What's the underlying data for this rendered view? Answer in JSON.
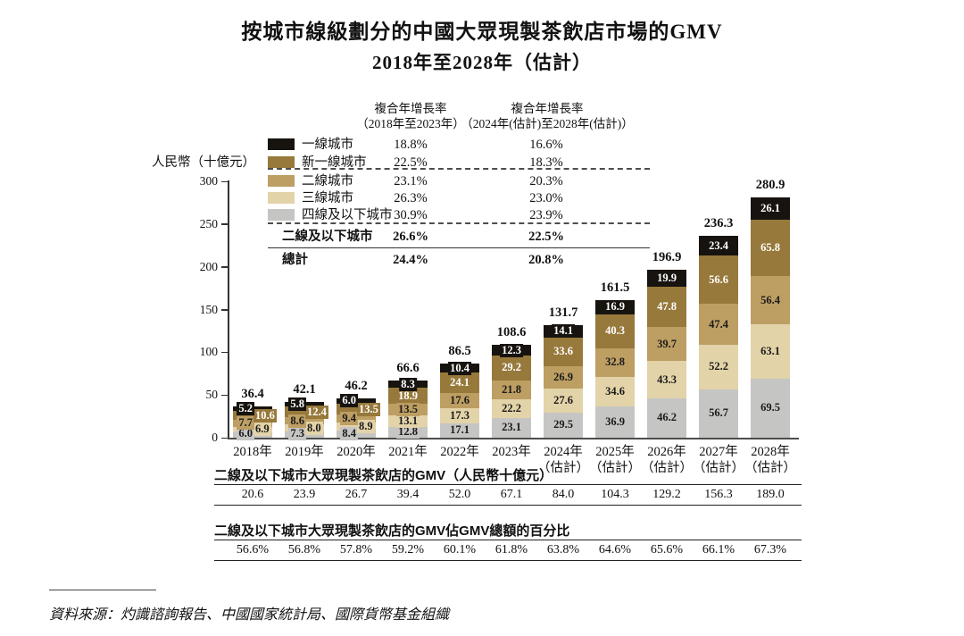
{
  "title": "按城市線級劃分的中國大眾現製茶飲店市場的GMV",
  "subtitle": "2018年至2028年（估計）",
  "y_axis": {
    "unit_label": "人民幣（十億元）",
    "ticks": [
      300,
      250,
      200,
      150,
      100,
      50,
      0
    ]
  },
  "cagr_table": {
    "col1_header_line1": "複合年增長率",
    "col1_header_line2": "（2018年至2023年）",
    "col2_header_line1": "複合年增長率",
    "col2_header_line2": "（2024年(估計)至2028年(估計)）",
    "rows": [
      {
        "label": "一線城市",
        "swatch": "#17130F",
        "cagr1": "18.8%",
        "cagr2": "16.6%",
        "bold": false
      },
      {
        "label": "新一線城市",
        "swatch": "#97793B",
        "cagr1": "22.5%",
        "cagr2": "18.3%",
        "bold": false
      },
      {
        "label": "二線城市",
        "swatch": "#BD9E63",
        "cagr1": "23.1%",
        "cagr2": "20.3%",
        "bold": false
      },
      {
        "label": "三線城市",
        "swatch": "#E3D3A9",
        "cagr1": "26.3%",
        "cagr2": "23.0%",
        "bold": false
      },
      {
        "label": "四線及以下城市",
        "swatch": "#C5C5C3",
        "cagr1": "30.9%",
        "cagr2": "23.9%",
        "bold": false
      },
      {
        "label": "二線及以下城市",
        "swatch": null,
        "cagr1": "26.6%",
        "cagr2": "22.5%",
        "bold": true
      },
      {
        "label": "總計",
        "swatch": null,
        "cagr1": "24.4%",
        "cagr2": "20.8%",
        "bold": true
      }
    ]
  },
  "chart_data": {
    "type": "bar",
    "stacked": true,
    "title": "按城市線級劃分的中國大眾現製茶飲店市場的GMV 2018年至2028年（估計）",
    "ylabel": "人民幣（十億元）",
    "ylim": [
      0,
      300
    ],
    "grid": false,
    "categories": [
      "2018年",
      "2019年",
      "2020年",
      "2021年",
      "2022年",
      "2023年",
      "2024年",
      "2025年",
      "2026年",
      "2027年",
      "2028年"
    ],
    "category_sublabels": [
      "",
      "",
      "",
      "",
      "",
      "",
      "（估計）",
      "（估計）",
      "（估計）",
      "（估計）",
      "（估計）"
    ],
    "series": [
      {
        "name": "四線及以下城市",
        "color": "#C5C5C3",
        "text_color": "#1A1A1A",
        "values": [
          6.0,
          7.3,
          8.4,
          12.8,
          17.1,
          23.1,
          29.5,
          36.9,
          46.2,
          56.7,
          69.5
        ]
      },
      {
        "name": "三線城市",
        "color": "#E3D3A9",
        "text_color": "#1A1A1A",
        "values": [
          6.9,
          8.0,
          8.9,
          13.1,
          17.3,
          22.2,
          27.6,
          34.6,
          43.3,
          52.2,
          63.1
        ]
      },
      {
        "name": "二線城市",
        "color": "#BD9E63",
        "text_color": "#1A1A1A",
        "values": [
          7.7,
          8.6,
          9.4,
          13.5,
          17.6,
          21.8,
          26.9,
          32.8,
          39.7,
          47.4,
          56.4
        ]
      },
      {
        "name": "新一線城市",
        "color": "#97793B",
        "text_color": "#FFFFFF",
        "values": [
          10.6,
          12.4,
          13.5,
          18.9,
          24.1,
          29.2,
          33.6,
          40.3,
          47.8,
          56.6,
          65.8
        ]
      },
      {
        "name": "一線城市",
        "color": "#17130F",
        "text_color": "#FFFFFF",
        "values": [
          5.2,
          5.8,
          6.0,
          8.3,
          10.4,
          12.3,
          14.1,
          16.9,
          19.9,
          23.4,
          26.1
        ]
      }
    ],
    "totals": [
      36.4,
      42.1,
      46.2,
      66.6,
      86.5,
      108.6,
      131.7,
      161.5,
      196.9,
      236.3,
      280.9
    ],
    "stagger_label_columns": [
      0,
      1,
      2
    ]
  },
  "sub_tables": [
    {
      "header": "二線及以下城市大眾現製茶飲店的GMV（人民幣十億元）",
      "values": [
        "20.6",
        "23.9",
        "26.7",
        "39.4",
        "52.0",
        "67.1",
        "84.0",
        "104.3",
        "129.2",
        "156.3",
        "189.0"
      ]
    },
    {
      "header": "二線及以下城市大眾現製茶飲店的GMV佔GMV總額的百分比",
      "values": [
        "56.6%",
        "56.8%",
        "57.8%",
        "59.2%",
        "60.1%",
        "61.8%",
        "63.8%",
        "64.6%",
        "65.6%",
        "66.1%",
        "67.3%"
      ]
    }
  ],
  "source": "資料來源：灼識諮詢報告、中國國家統計局、國際貨幣基金組織"
}
